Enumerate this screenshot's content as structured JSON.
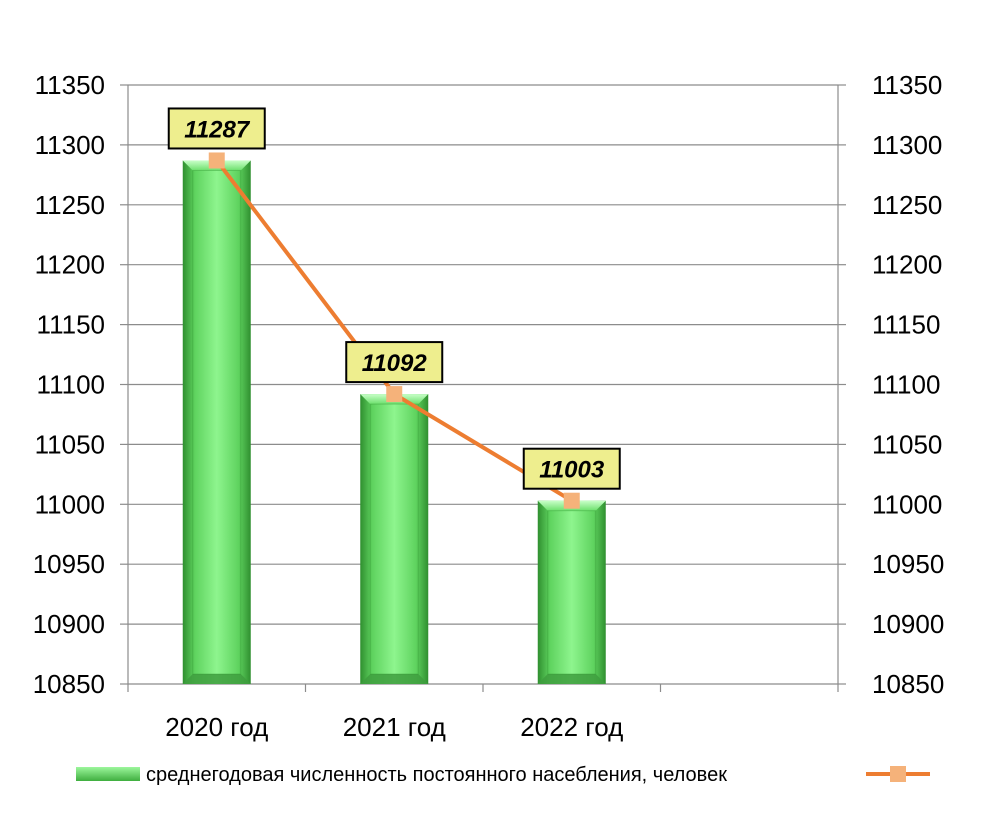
{
  "chart_data": {
    "type": "bar",
    "categories": [
      "2020 год",
      "2021 год",
      "2022 год"
    ],
    "series": [
      {
        "kind": "bar",
        "name": "среднегодовая численность постоянного насебления, человек",
        "values": [
          11287,
          11092,
          11003
        ],
        "color": "#5fd35f"
      },
      {
        "kind": "line",
        "values": [
          11287,
          11092,
          11003
        ],
        "color": "#ed7d31",
        "marker_color": "#f5b27a"
      }
    ],
    "data_labels": [
      "11287",
      "11092",
      "11003"
    ],
    "y_left": {
      "min": 10850,
      "max": 11350,
      "step": 50
    },
    "y_right": {
      "min": 10850,
      "max": 11350,
      "step": 50
    },
    "grid": true,
    "legend_position": "bottom",
    "data_label_box_color": "#eeee8e"
  }
}
